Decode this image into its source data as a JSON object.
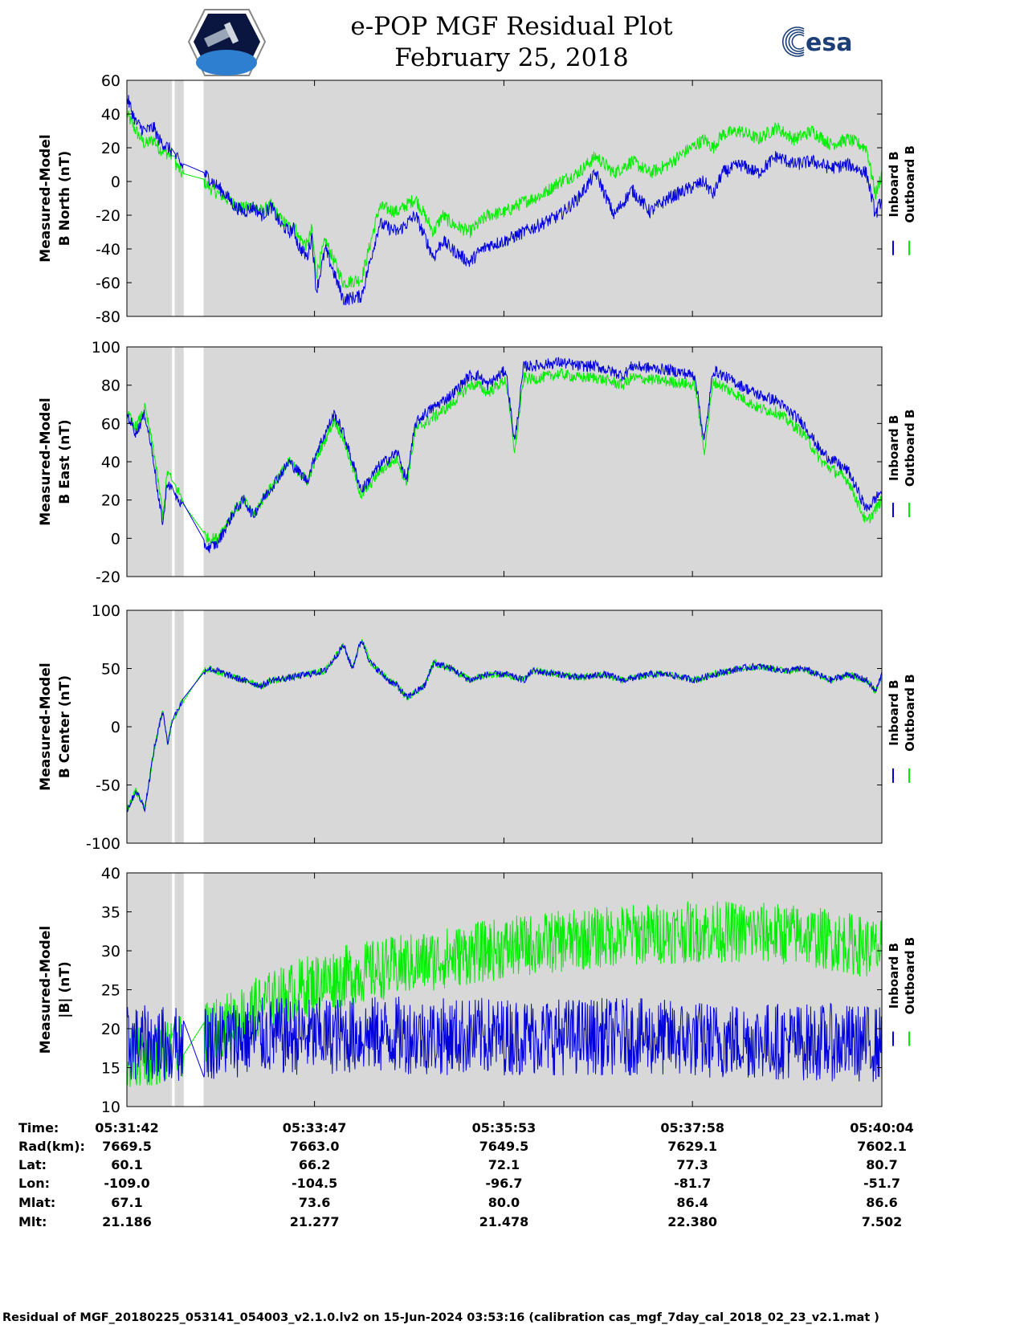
{
  "header": {
    "title_line1": "e-POP MGF Residual Plot",
    "title_line2": "February 25, 2018",
    "left_logo_icon": "cassiope-mission-logo-icon",
    "right_logo_text": "esa",
    "right_logo_icon": "esa-logo-icon"
  },
  "colors": {
    "inboard": "#0000dd",
    "outboard": "#00ee00",
    "plot_background": "#d8d8d8",
    "gap": "#ffffff"
  },
  "legend": {
    "inboard": "Inboard B",
    "outboard": "Outboard B"
  },
  "chart_data": [
    {
      "type": "line",
      "ylabel_line1": "Measured-Model",
      "ylabel_line2": "B North (nT)",
      "ylim": [
        -80,
        60
      ],
      "yticks": [
        "60",
        "40",
        "20",
        "0",
        "-20",
        "-40",
        "-60",
        "-80"
      ],
      "x": [
        0,
        0.1,
        0.2,
        0.3,
        0.35,
        0.5,
        0.6,
        0.75,
        0.85,
        0.95,
        1.1,
        1.2,
        1.3,
        1.4,
        1.5,
        1.6,
        1.7,
        1.8,
        1.85,
        1.9,
        2.0,
        2.05,
        2.1,
        2.2,
        2.4,
        2.6,
        2.8,
        3.0,
        3.2,
        3.4,
        3.5,
        3.6,
        3.8,
        3.9,
        4.0,
        4.2,
        4.4,
        4.6,
        4.8,
        5.0,
        5.2,
        5.4,
        5.6,
        5.8,
        6.0,
        6.2,
        6.4,
        6.5,
        6.6,
        6.8,
        7.0,
        7.2,
        7.4,
        7.6,
        7.8,
        8.0,
        8.2,
        8.3,
        8.37
      ],
      "series": [
        {
          "name": "Inboard B",
          "amp": 4,
          "values": [
            50,
            35,
            30,
            32,
            25,
            18,
            10,
            5,
            5,
            0,
            -8,
            -15,
            -18,
            -15,
            -20,
            -15,
            -25,
            -30,
            -28,
            -38,
            -45,
            -32,
            -65,
            -40,
            -70,
            -68,
            -25,
            -30,
            -20,
            -45,
            -35,
            -40,
            -48,
            -42,
            -38,
            -35,
            -30,
            -25,
            -20,
            -10,
            5,
            -20,
            -5,
            -18,
            -10,
            -5,
            0,
            -8,
            5,
            10,
            5,
            15,
            10,
            12,
            8,
            10,
            5,
            -20,
            -10
          ]
        },
        {
          "name": "Outboard B",
          "amp": 4,
          "values": [
            40,
            30,
            22,
            25,
            20,
            15,
            5,
            0,
            0,
            -5,
            -10,
            -14,
            -16,
            -14,
            -18,
            -14,
            -22,
            -27,
            -25,
            -33,
            -38,
            -28,
            -55,
            -35,
            -60,
            -58,
            -15,
            -18,
            -10,
            -30,
            -20,
            -25,
            -30,
            -25,
            -20,
            -18,
            -12,
            -8,
            0,
            5,
            15,
            5,
            12,
            5,
            10,
            18,
            25,
            20,
            28,
            30,
            25,
            32,
            25,
            30,
            22,
            25,
            20,
            -8,
            5
          ]
        }
      ]
    },
    {
      "type": "line",
      "ylabel_line1": "Measured-Model",
      "ylabel_line2": "B East (nT)",
      "ylim": [
        -20,
        100
      ],
      "yticks": [
        "100",
        "80",
        "60",
        "40",
        "20",
        "0",
        "-20"
      ],
      "x": [
        0,
        0.1,
        0.2,
        0.3,
        0.35,
        0.4,
        0.45,
        0.5,
        0.6,
        0.8,
        0.9,
        1.0,
        1.2,
        1.3,
        1.4,
        1.5,
        1.8,
        2.0,
        2.1,
        2.3,
        2.4,
        2.6,
        2.8,
        3.0,
        3.1,
        3.2,
        3.3,
        3.6,
        3.8,
        3.9,
        4.0,
        4.2,
        4.3,
        4.4,
        4.5,
        4.8,
        5.0,
        5.2,
        5.5,
        5.6,
        6.0,
        6.3,
        6.4,
        6.5,
        6.8,
        7.0,
        7.2,
        7.5,
        7.7,
        8.0,
        8.2,
        8.37
      ],
      "series": [
        {
          "name": "Inboard B",
          "amp": 3,
          "values": [
            65,
            55,
            65,
            40,
            20,
            8,
            30,
            25,
            18,
            0,
            -5,
            -3,
            15,
            20,
            12,
            20,
            40,
            30,
            45,
            65,
            55,
            25,
            38,
            45,
            30,
            60,
            65,
            75,
            85,
            85,
            80,
            88,
            50,
            90,
            90,
            92,
            90,
            90,
            85,
            90,
            88,
            85,
            50,
            88,
            80,
            75,
            72,
            60,
            45,
            35,
            15,
            25
          ]
        },
        {
          "name": "Outboard B",
          "amp": 3,
          "values": [
            65,
            58,
            68,
            45,
            28,
            12,
            35,
            30,
            22,
            5,
            0,
            0,
            15,
            20,
            12,
            20,
            40,
            30,
            42,
            62,
            52,
            22,
            35,
            42,
            28,
            57,
            60,
            70,
            80,
            80,
            76,
            83,
            45,
            84,
            83,
            86,
            84,
            84,
            80,
            84,
            82,
            80,
            45,
            82,
            74,
            68,
            66,
            55,
            40,
            30,
            8,
            20
          ]
        }
      ]
    },
    {
      "type": "line",
      "ylabel_line1": "Measured-Model",
      "ylabel_line2": "B Center (nT)",
      "ylim": [
        -100,
        100
      ],
      "yticks": [
        "100",
        "50",
        "0",
        "-50",
        "-100"
      ],
      "x": [
        0,
        0.1,
        0.2,
        0.3,
        0.4,
        0.45,
        0.5,
        0.6,
        0.7,
        0.8,
        0.9,
        1.0,
        1.2,
        1.5,
        1.6,
        1.8,
        2.0,
        2.2,
        2.4,
        2.5,
        2.6,
        2.7,
        2.9,
        3.0,
        3.1,
        3.3,
        3.4,
        3.6,
        3.8,
        4.0,
        4.2,
        4.4,
        4.5,
        4.8,
        5.0,
        5.3,
        5.5,
        5.8,
        6.0,
        6.3,
        6.5,
        6.8,
        7.0,
        7.3,
        7.5,
        7.8,
        8.0,
        8.2,
        8.3,
        8.37
      ],
      "series": [
        {
          "name": "Inboard B",
          "amp": 3,
          "values": [
            -72,
            -55,
            -70,
            -20,
            15,
            -15,
            5,
            20,
            30,
            45,
            50,
            48,
            42,
            35,
            40,
            42,
            45,
            48,
            70,
            50,
            75,
            55,
            40,
            35,
            25,
            35,
            55,
            50,
            40,
            45,
            45,
            40,
            48,
            45,
            42,
            45,
            40,
            45,
            45,
            40,
            45,
            50,
            52,
            48,
            50,
            40,
            45,
            40,
            30,
            45
          ]
        },
        {
          "name": "Outboard B",
          "amp": 3,
          "values": [
            -72,
            -55,
            -70,
            -20,
            15,
            -15,
            5,
            20,
            30,
            45,
            50,
            48,
            42,
            35,
            40,
            42,
            45,
            48,
            70,
            50,
            75,
            55,
            40,
            35,
            25,
            35,
            55,
            50,
            40,
            45,
            45,
            40,
            48,
            45,
            42,
            45,
            40,
            45,
            45,
            40,
            45,
            50,
            52,
            48,
            50,
            40,
            45,
            40,
            30,
            45
          ]
        }
      ]
    },
    {
      "type": "line",
      "ylabel_line1": "Measured-Model",
      "ylabel_line2": "|B| (nT)",
      "ylim": [
        10,
        40
      ],
      "yticks": [
        "40",
        "35",
        "30",
        "25",
        "20",
        "15",
        "10"
      ],
      "x": [
        0,
        0.5,
        1.0,
        1.5,
        2.0,
        2.5,
        3.0,
        3.5,
        4.0,
        4.5,
        5.0,
        5.5,
        6.0,
        6.5,
        7.0,
        7.5,
        8.0,
        8.37
      ],
      "series": [
        {
          "name": "Inboard B",
          "amp": 5,
          "values": [
            18,
            18,
            18.5,
            19,
            19,
            19.2,
            19.2,
            19,
            19,
            19,
            19,
            19,
            18.8,
            18.5,
            18.5,
            18.3,
            18.2,
            18
          ]
        },
        {
          "name": "Outboard B",
          "amp": 4,
          "values": [
            16,
            17,
            20,
            23,
            25.5,
            27,
            28,
            29,
            30,
            30.8,
            31.4,
            32,
            32.3,
            32.5,
            32.3,
            32,
            31,
            30
          ]
        }
      ]
    }
  ],
  "x_axis": {
    "data_gaps": [
      [
        0.5,
        0.53
      ],
      [
        0.63,
        0.85
      ]
    ]
  },
  "ephemeris": {
    "row_labels": [
      "Time:",
      "Rad(km):",
      "Lat:",
      "Lon:",
      "Mlat:",
      "Mlt:"
    ],
    "columns": [
      [
        "05:31:42",
        "7669.5",
        "60.1",
        "-109.0",
        "67.1",
        "21.186"
      ],
      [
        "05:33:47",
        "7663.0",
        "66.2",
        "-104.5",
        "73.6",
        "21.277"
      ],
      [
        "05:35:53",
        "7649.5",
        "72.1",
        "-96.7",
        "80.0",
        "21.478"
      ],
      [
        "05:37:58",
        "7629.1",
        "77.3",
        "-81.7",
        "86.4",
        "22.380"
      ],
      [
        "05:40:04",
        "7602.1",
        "80.7",
        "-51.7",
        "86.6",
        "7.502"
      ]
    ]
  },
  "footer": "Residual of MGF_20180225_053141_054003_v2.1.0.lv2 on 15-Jun-2024 03:53:16 (calibration cas_mgf_7day_cal_2018_02_23_v2.1.mat )"
}
